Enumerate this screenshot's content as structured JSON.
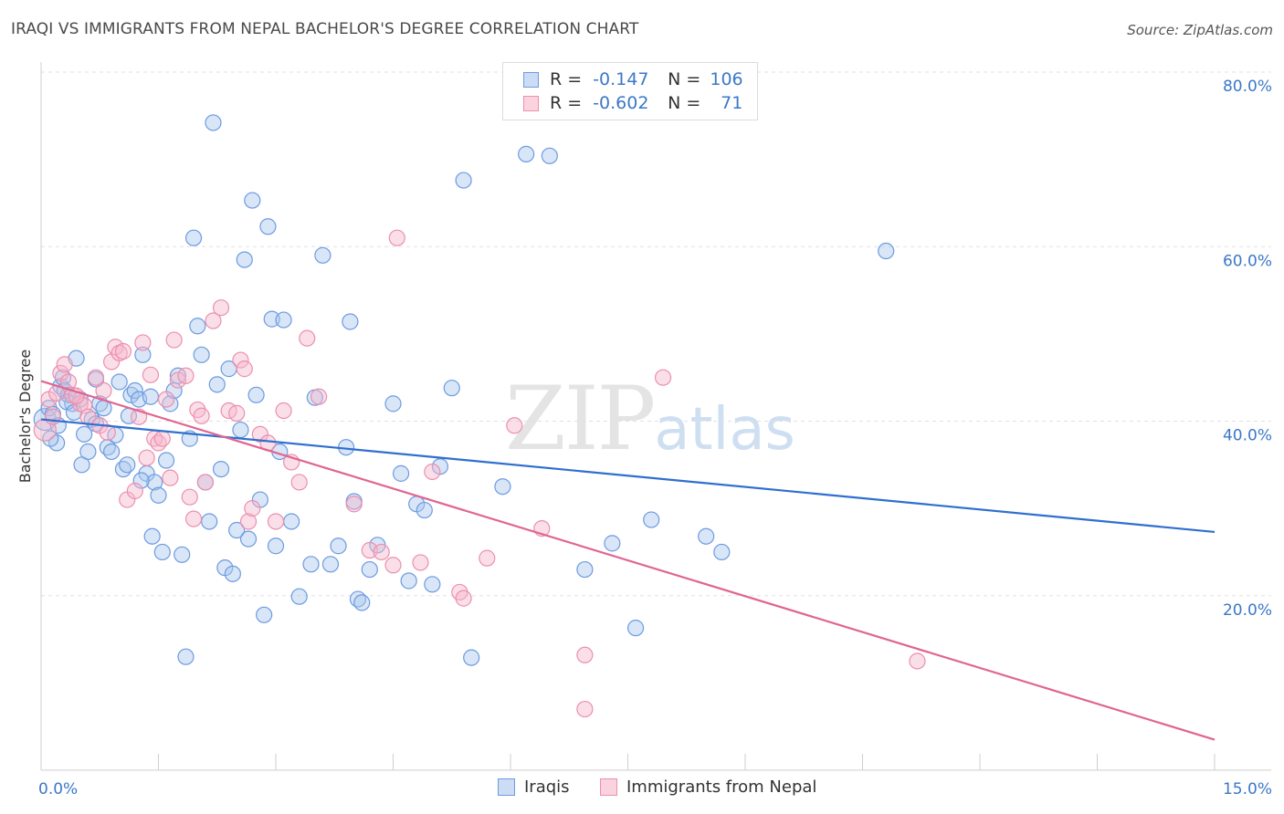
{
  "title": "IRAQI VS IMMIGRANTS FROM NEPAL BACHELOR'S DEGREE CORRELATION CHART",
  "source": "Source: ZipAtlas.com",
  "watermark": {
    "zip": "ZIP",
    "atlas": "atlas"
  },
  "legend": {
    "rows": [
      {
        "r_label": "R =",
        "r_value": "-0.147",
        "n_label": "N =",
        "n_value": "106"
      },
      {
        "r_label": "R =",
        "r_value": "-0.602",
        "n_label": "N =",
        "n_value": "71"
      }
    ]
  },
  "bottom_legend": {
    "iraqis": "Iraqis",
    "nepal": "Immigrants from Nepal"
  },
  "colors": {
    "iraqi_fill": "#a9c7ee",
    "iraqi_stroke": "#6d9be0",
    "iraqi_line": "#2f6fce",
    "nepal_fill": "#f6b9cc",
    "nepal_stroke": "#ec8fae",
    "nepal_line": "#e06592",
    "tick_text": "#3b78c8"
  },
  "chart_data": {
    "type": "scatter",
    "xlabel": "",
    "ylabel": "Bachelor's Degree",
    "xlim": [
      0,
      15
    ],
    "ylim": [
      0,
      80
    ],
    "x_tick_labels": [
      "0.0%",
      "15.0%"
    ],
    "y_ticks": [
      20,
      40,
      60,
      80
    ],
    "y_tick_labels": [
      "20.0%",
      "40.0%",
      "60.0%",
      "80.0%"
    ],
    "grid": "horizontal dashed",
    "series": [
      {
        "name": "Iraqis",
        "trend": {
          "x": [
            0,
            15
          ],
          "y": [
            40.2,
            27.3
          ]
        },
        "points": [
          [
            0.05,
            40.2
          ],
          [
            0.1,
            41.5
          ],
          [
            0.15,
            40.8
          ],
          [
            0.2,
            37.5
          ],
          [
            0.25,
            44.0
          ],
          [
            0.28,
            45.0
          ],
          [
            0.3,
            43.5
          ],
          [
            0.35,
            43.0
          ],
          [
            0.4,
            42.0
          ],
          [
            0.45,
            47.2
          ],
          [
            0.5,
            42.5
          ],
          [
            0.52,
            35.0
          ],
          [
            0.6,
            36.5
          ],
          [
            0.65,
            40.2
          ],
          [
            0.7,
            44.8
          ],
          [
            0.75,
            42.0
          ],
          [
            0.8,
            41.5
          ],
          [
            0.85,
            37.0
          ],
          [
            0.9,
            36.5
          ],
          [
            1.0,
            44.5
          ],
          [
            1.05,
            34.5
          ],
          [
            1.1,
            35.0
          ],
          [
            1.15,
            43.0
          ],
          [
            1.2,
            43.5
          ],
          [
            1.25,
            42.5
          ],
          [
            1.3,
            47.6
          ],
          [
            1.35,
            34.0
          ],
          [
            1.4,
            42.8
          ],
          [
            1.45,
            33.0
          ],
          [
            1.5,
            31.5
          ],
          [
            1.55,
            25.0
          ],
          [
            1.6,
            35.5
          ],
          [
            1.65,
            42.0
          ],
          [
            1.7,
            43.5
          ],
          [
            1.75,
            45.2
          ],
          [
            1.8,
            24.7
          ],
          [
            1.85,
            13.0
          ],
          [
            1.9,
            38.0
          ],
          [
            1.95,
            61.0
          ],
          [
            2.0,
            50.9
          ],
          [
            2.05,
            47.6
          ],
          [
            2.1,
            33.0
          ],
          [
            2.15,
            28.5
          ],
          [
            2.2,
            74.2
          ],
          [
            2.25,
            44.2
          ],
          [
            2.3,
            34.5
          ],
          [
            2.35,
            23.2
          ],
          [
            2.4,
            46.0
          ],
          [
            2.45,
            22.5
          ],
          [
            2.5,
            27.5
          ],
          [
            2.55,
            39.0
          ],
          [
            2.6,
            58.5
          ],
          [
            2.65,
            26.5
          ],
          [
            2.7,
            65.3
          ],
          [
            2.75,
            43.0
          ],
          [
            2.8,
            31.0
          ],
          [
            2.85,
            17.8
          ],
          [
            2.9,
            62.3
          ],
          [
            2.95,
            51.7
          ],
          [
            3.0,
            25.7
          ],
          [
            3.05,
            36.5
          ],
          [
            3.1,
            51.6
          ],
          [
            3.2,
            28.5
          ],
          [
            3.3,
            19.9
          ],
          [
            3.45,
            23.6
          ],
          [
            3.5,
            42.7
          ],
          [
            3.6,
            59.0
          ],
          [
            3.7,
            23.6
          ],
          [
            3.8,
            25.7
          ],
          [
            3.9,
            37.0
          ],
          [
            3.95,
            51.4
          ],
          [
            4.0,
            30.8
          ],
          [
            4.05,
            19.6
          ],
          [
            4.1,
            19.2
          ],
          [
            4.2,
            23.0
          ],
          [
            4.3,
            25.8
          ],
          [
            4.5,
            42.0
          ],
          [
            4.6,
            34.0
          ],
          [
            4.7,
            21.7
          ],
          [
            4.8,
            30.5
          ],
          [
            4.9,
            29.8
          ],
          [
            5.0,
            21.3
          ],
          [
            5.1,
            34.8
          ],
          [
            5.25,
            43.8
          ],
          [
            5.4,
            67.6
          ],
          [
            5.5,
            12.9
          ],
          [
            5.9,
            32.5
          ],
          [
            6.2,
            70.6
          ],
          [
            6.5,
            70.4
          ],
          [
            6.95,
            23.0
          ],
          [
            7.3,
            26.0
          ],
          [
            7.6,
            16.3
          ],
          [
            7.8,
            28.7
          ],
          [
            8.5,
            26.8
          ],
          [
            8.7,
            25.0
          ],
          [
            10.8,
            59.5
          ],
          [
            0.12,
            38.0
          ],
          [
            0.22,
            39.5
          ],
          [
            0.33,
            42.2
          ],
          [
            0.42,
            41.0
          ],
          [
            0.55,
            38.5
          ],
          [
            0.7,
            39.7
          ],
          [
            0.95,
            38.4
          ],
          [
            1.12,
            40.6
          ],
          [
            1.28,
            33.2
          ],
          [
            1.42,
            26.8
          ]
        ]
      },
      {
        "name": "Immigrants from Nepal",
        "trend": {
          "x": [
            0,
            15
          ],
          "y": [
            44.6,
            3.5
          ]
        },
        "points": [
          [
            0.05,
            39.0
          ],
          [
            0.1,
            42.5
          ],
          [
            0.15,
            40.5
          ],
          [
            0.2,
            43.2
          ],
          [
            0.25,
            45.5
          ],
          [
            0.3,
            46.5
          ],
          [
            0.35,
            44.5
          ],
          [
            0.4,
            43.0
          ],
          [
            0.5,
            42.0
          ],
          [
            0.55,
            41.8
          ],
          [
            0.6,
            40.5
          ],
          [
            0.7,
            45.0
          ],
          [
            0.75,
            39.5
          ],
          [
            0.8,
            43.5
          ],
          [
            0.85,
            38.7
          ],
          [
            0.9,
            46.8
          ],
          [
            0.95,
            48.5
          ],
          [
            1.0,
            47.8
          ],
          [
            1.05,
            48.0
          ],
          [
            1.1,
            31.0
          ],
          [
            1.2,
            32.0
          ],
          [
            1.25,
            40.5
          ],
          [
            1.3,
            49.0
          ],
          [
            1.35,
            35.8
          ],
          [
            1.4,
            45.3
          ],
          [
            1.45,
            38.0
          ],
          [
            1.5,
            37.5
          ],
          [
            1.55,
            38.0
          ],
          [
            1.6,
            42.5
          ],
          [
            1.65,
            33.5
          ],
          [
            1.7,
            49.3
          ],
          [
            1.75,
            44.7
          ],
          [
            1.85,
            45.2
          ],
          [
            1.9,
            31.3
          ],
          [
            1.95,
            28.8
          ],
          [
            2.0,
            41.3
          ],
          [
            2.05,
            40.6
          ],
          [
            2.1,
            33.0
          ],
          [
            2.2,
            51.5
          ],
          [
            2.3,
            53.0
          ],
          [
            2.4,
            41.2
          ],
          [
            2.5,
            40.9
          ],
          [
            2.55,
            47.0
          ],
          [
            2.6,
            46.0
          ],
          [
            2.65,
            28.5
          ],
          [
            2.7,
            30.0
          ],
          [
            2.8,
            38.5
          ],
          [
            2.9,
            37.5
          ],
          [
            3.0,
            28.5
          ],
          [
            3.1,
            41.2
          ],
          [
            3.2,
            35.3
          ],
          [
            3.3,
            33.0
          ],
          [
            3.4,
            49.5
          ],
          [
            3.55,
            42.8
          ],
          [
            4.0,
            30.5
          ],
          [
            4.2,
            25.2
          ],
          [
            4.35,
            25.0
          ],
          [
            4.5,
            23.5
          ],
          [
            4.55,
            61.0
          ],
          [
            4.85,
            23.8
          ],
          [
            5.0,
            34.2
          ],
          [
            5.35,
            20.4
          ],
          [
            5.4,
            19.7
          ],
          [
            5.7,
            24.3
          ],
          [
            6.05,
            39.5
          ],
          [
            6.4,
            27.7
          ],
          [
            6.95,
            13.2
          ],
          [
            6.95,
            7.0
          ],
          [
            7.95,
            45.0
          ],
          [
            11.2,
            12.5
          ],
          [
            0.45,
            42.9
          ]
        ]
      }
    ]
  }
}
